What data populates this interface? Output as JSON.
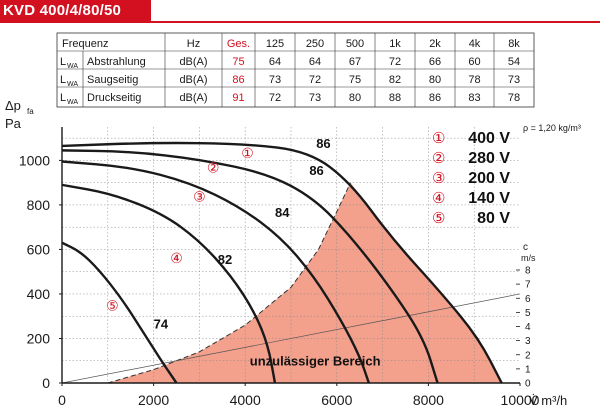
{
  "header": {
    "title": "KVD 400/4/80/50"
  },
  "table": {
    "columns": [
      "Frequenz",
      "Hz",
      "Ges.",
      "125",
      "250",
      "500",
      "1k",
      "2k",
      "4k",
      "8k"
    ],
    "rows": [
      {
        "l": "L",
        "sub": "WA",
        "label": "Abstrahlung",
        "unit": "dB(A)",
        "total": "75",
        "values": [
          "64",
          "64",
          "67",
          "72",
          "66",
          "60",
          "54"
        ]
      },
      {
        "l": "L",
        "sub": "WA",
        "label": "Saugseitig",
        "unit": "dB(A)",
        "total": "86",
        "values": [
          "73",
          "72",
          "75",
          "82",
          "80",
          "78",
          "73"
        ]
      },
      {
        "l": "L",
        "sub": "WA",
        "label": "Druckseitig",
        "unit": "dB(A)",
        "total": "91",
        "values": [
          "72",
          "73",
          "80",
          "88",
          "86",
          "83",
          "78"
        ]
      }
    ]
  },
  "colors": {
    "brand_red": "#d3101f",
    "forbidden_zone": "#f3a08c",
    "curve": "#1a1a1a",
    "marker_red": "#d3101f"
  },
  "chart_data": {
    "type": "line",
    "title": "",
    "xlabel": "V̇ m³/h",
    "ylabel_main": "Δp",
    "ylabel_sub": "fa",
    "ylabel_unit": "Pa",
    "xlim": [
      0,
      10000
    ],
    "ylim": [
      0,
      1150
    ],
    "x_ticks": [
      0,
      2000,
      4000,
      6000,
      8000,
      10000
    ],
    "x_tick_labels": [
      "0",
      "2000",
      "4000",
      "6000",
      "8000",
      "10000"
    ],
    "y_ticks": [
      0,
      200,
      400,
      600,
      800,
      1000
    ],
    "y_tick_labels": [
      "0",
      "200",
      "400",
      "600",
      "800",
      "1000"
    ],
    "grid": true,
    "density_note": "ρ = 1,20 kg/m³",
    "velocity_axis": {
      "label_top": "c",
      "label_unit": "m/s",
      "ticks": [
        "0",
        "1",
        "2",
        "3",
        "4",
        "5",
        "6",
        "7",
        "8"
      ]
    },
    "forbidden_zone_label": "unzulässiger Bereich",
    "legend": [
      {
        "marker": "①",
        "label": "400 V"
      },
      {
        "marker": "②",
        "label": "280 V"
      },
      {
        "marker": "③",
        "label": "200 V"
      },
      {
        "marker": "④",
        "label": "140 V"
      },
      {
        "marker": "⑤",
        "label": "80 V"
      }
    ],
    "series": [
      {
        "marker": "①",
        "points": [
          [
            0,
            1065
          ],
          [
            2000,
            1080
          ],
          [
            4000,
            1075
          ],
          [
            5400,
            1040
          ],
          [
            6300,
            900
          ],
          [
            7200,
            650
          ],
          [
            8300,
            400
          ],
          [
            9100,
            200
          ],
          [
            9600,
            0
          ]
        ]
      },
      {
        "marker": "②",
        "points": [
          [
            0,
            1045
          ],
          [
            1500,
            1040
          ],
          [
            3000,
            1005
          ],
          [
            4500,
            940
          ],
          [
            5500,
            830
          ],
          [
            6300,
            660
          ],
          [
            7200,
            420
          ],
          [
            7900,
            200
          ],
          [
            8200,
            0
          ]
        ]
      },
      {
        "marker": "③",
        "points": [
          [
            0,
            995
          ],
          [
            1500,
            970
          ],
          [
            2800,
            900
          ],
          [
            3900,
            790
          ],
          [
            4800,
            650
          ],
          [
            5500,
            480
          ],
          [
            6100,
            280
          ],
          [
            6500,
            120
          ],
          [
            6700,
            0
          ]
        ]
      },
      {
        "marker": "④",
        "points": [
          [
            0,
            890
          ],
          [
            1100,
            850
          ],
          [
            2200,
            760
          ],
          [
            3000,
            640
          ],
          [
            3700,
            480
          ],
          [
            4200,
            320
          ],
          [
            4500,
            170
          ],
          [
            4650,
            0
          ]
        ]
      },
      {
        "marker": "⑤",
        "points": [
          [
            0,
            630
          ],
          [
            400,
            590
          ],
          [
            800,
            510
          ],
          [
            1300,
            380
          ],
          [
            1800,
            220
          ],
          [
            2200,
            90
          ],
          [
            2500,
            0
          ]
        ]
      }
    ],
    "efficiency_labels": [
      "86",
      "86",
      "84",
      "82",
      "74"
    ],
    "forbidden_boundary": [
      [
        1000,
        0
      ],
      [
        2000,
        60
      ],
      [
        3000,
        140
      ],
      [
        4000,
        260
      ],
      [
        5000,
        430
      ],
      [
        5600,
        600
      ],
      [
        6000,
        770
      ],
      [
        6300,
        900
      ]
    ]
  }
}
